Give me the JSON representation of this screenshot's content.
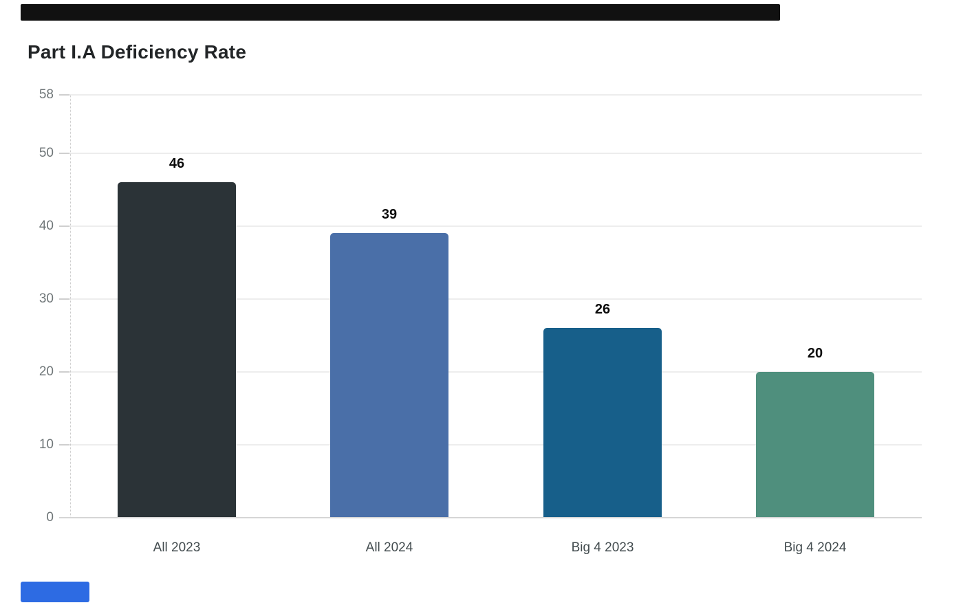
{
  "page": {
    "header_bar_color": "#111111",
    "footer_badge_color": "#2d6be3",
    "background_color": "#ffffff"
  },
  "chart_data": {
    "type": "bar",
    "title": "Part I.A Deficiency Rate",
    "categories": [
      "All 2023",
      "All 2024",
      "Big 4 2023",
      "Big 4 2024"
    ],
    "values": [
      46,
      39,
      26,
      20
    ],
    "value_labels": [
      "46",
      "39",
      "26",
      "20"
    ],
    "bar_colors": [
      "#2b3337",
      "#4a6fa8",
      "#175f8a",
      "#4f8f7d"
    ],
    "yticks": [
      58,
      50,
      40,
      30,
      20,
      10,
      0
    ],
    "ylim": [
      0,
      58
    ],
    "xlabel": "",
    "ylabel": "",
    "grid": "horizontal",
    "legend": "none",
    "value_label_color": "#0d0d0d",
    "ytick_color": "#6f7678",
    "xtick_color": "#424b4e"
  }
}
